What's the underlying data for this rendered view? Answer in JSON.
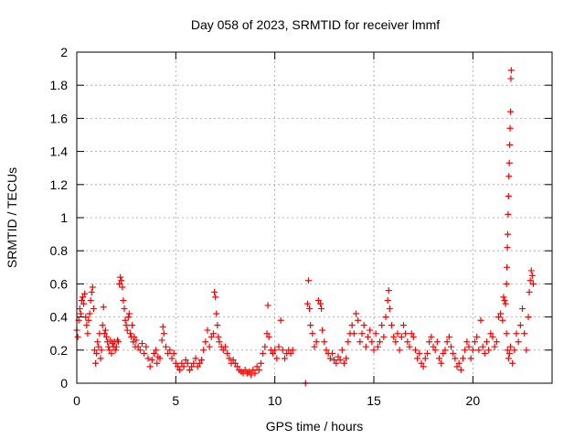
{
  "chart_data": {
    "type": "scatter",
    "title": "Day 058 of 2023, SRMTID for receiver lmmf",
    "xlabel": "GPS time / hours",
    "ylabel": "SRMTID / TECUs",
    "xlim": [
      0,
      24
    ],
    "ylim": [
      0,
      2
    ],
    "xticks": [
      "0",
      "5",
      "10",
      "15",
      "20"
    ],
    "yticks": [
      "0",
      "0.2",
      "0.4",
      "0.6",
      "0.8",
      "1",
      "1.2",
      "1.4",
      "1.6",
      "1.8",
      "2"
    ],
    "grid": true,
    "marker": "+",
    "color": "#ff0000",
    "series": [
      {
        "name": "SRMTID",
        "points": [
          [
            0.0,
            0.32
          ],
          [
            0.05,
            0.28
          ],
          [
            0.1,
            0.38
          ],
          [
            0.15,
            0.45
          ],
          [
            0.2,
            0.42
          ],
          [
            0.25,
            0.5
          ],
          [
            0.3,
            0.52
          ],
          [
            0.35,
            0.48
          ],
          [
            0.4,
            0.54
          ],
          [
            0.45,
            0.4
          ],
          [
            0.5,
            0.35
          ],
          [
            0.55,
            0.3
          ],
          [
            0.6,
            0.38
          ],
          [
            0.65,
            0.42
          ],
          [
            0.7,
            0.5
          ],
          [
            0.75,
            0.55
          ],
          [
            0.8,
            0.58
          ],
          [
            0.85,
            0.45
          ],
          [
            0.9,
            0.2
          ],
          [
            0.95,
            0.12
          ],
          [
            1.0,
            0.18
          ],
          [
            1.05,
            0.25
          ],
          [
            1.1,
            0.22
          ],
          [
            1.15,
            0.3
          ],
          [
            1.2,
            0.15
          ],
          [
            1.25,
            0.2
          ],
          [
            1.3,
            0.35
          ],
          [
            1.35,
            0.46
          ],
          [
            1.4,
            0.3
          ],
          [
            1.45,
            0.32
          ],
          [
            1.5,
            0.28
          ],
          [
            1.55,
            0.25
          ],
          [
            1.6,
            0.22
          ],
          [
            1.65,
            0.2
          ],
          [
            1.7,
            0.26
          ],
          [
            1.75,
            0.18
          ],
          [
            1.8,
            0.24
          ],
          [
            1.85,
            0.22
          ],
          [
            1.9,
            0.25
          ],
          [
            1.95,
            0.2
          ],
          [
            2.0,
            0.22
          ],
          [
            2.05,
            0.26
          ],
          [
            2.1,
            0.25
          ],
          [
            2.15,
            0.6
          ],
          [
            2.2,
            0.64
          ],
          [
            2.25,
            0.62
          ],
          [
            2.3,
            0.58
          ],
          [
            2.35,
            0.5
          ],
          [
            2.4,
            0.45
          ],
          [
            2.45,
            0.38
          ],
          [
            2.5,
            0.35
          ],
          [
            2.55,
            0.32
          ],
          [
            2.6,
            0.4
          ],
          [
            2.65,
            0.42
          ],
          [
            2.7,
            0.3
          ],
          [
            2.75,
            0.28
          ],
          [
            2.8,
            0.35
          ],
          [
            2.85,
            0.25
          ],
          [
            2.9,
            0.28
          ],
          [
            2.95,
            0.22
          ],
          [
            3.0,
            0.26
          ],
          [
            3.1,
            0.22
          ],
          [
            3.2,
            0.2
          ],
          [
            3.3,
            0.24
          ],
          [
            3.4,
            0.18
          ],
          [
            3.5,
            0.22
          ],
          [
            3.6,
            0.15
          ],
          [
            3.7,
            0.1
          ],
          [
            3.8,
            0.14
          ],
          [
            3.9,
            0.18
          ],
          [
            4.0,
            0.2
          ],
          [
            4.05,
            0.12
          ],
          [
            4.1,
            0.16
          ],
          [
            4.2,
            0.15
          ],
          [
            4.3,
            0.26
          ],
          [
            4.35,
            0.34
          ],
          [
            4.4,
            0.3
          ],
          [
            4.5,
            0.22
          ],
          [
            4.6,
            0.18
          ],
          [
            4.7,
            0.2
          ],
          [
            4.8,
            0.15
          ],
          [
            4.9,
            0.18
          ],
          [
            5.0,
            0.12
          ],
          [
            5.1,
            0.1
          ],
          [
            5.2,
            0.08
          ],
          [
            5.3,
            0.12
          ],
          [
            5.4,
            0.1
          ],
          [
            5.5,
            0.14
          ],
          [
            5.6,
            0.12
          ],
          [
            5.7,
            0.08
          ],
          [
            5.8,
            0.1
          ],
          [
            5.9,
            0.12
          ],
          [
            6.0,
            0.15
          ],
          [
            6.1,
            0.1
          ],
          [
            6.2,
            0.12
          ],
          [
            6.3,
            0.14
          ],
          [
            6.4,
            0.2
          ],
          [
            6.5,
            0.25
          ],
          [
            6.6,
            0.32
          ],
          [
            6.7,
            0.22
          ],
          [
            6.8,
            0.28
          ],
          [
            6.9,
            0.3
          ],
          [
            6.95,
            0.55
          ],
          [
            7.0,
            0.52
          ],
          [
            7.05,
            0.42
          ],
          [
            7.1,
            0.35
          ],
          [
            7.15,
            0.28
          ],
          [
            7.2,
            0.25
          ],
          [
            7.3,
            0.22
          ],
          [
            7.4,
            0.2
          ],
          [
            7.5,
            0.22
          ],
          [
            7.6,
            0.18
          ],
          [
            7.7,
            0.15
          ],
          [
            7.8,
            0.12
          ],
          [
            7.9,
            0.14
          ],
          [
            8.0,
            0.12
          ],
          [
            8.1,
            0.1
          ],
          [
            8.2,
            0.08
          ],
          [
            8.3,
            0.07
          ],
          [
            8.4,
            0.06
          ],
          [
            8.5,
            0.08
          ],
          [
            8.6,
            0.06
          ],
          [
            8.7,
            0.07
          ],
          [
            8.8,
            0.05
          ],
          [
            8.9,
            0.08
          ],
          [
            9.0,
            0.06
          ],
          [
            9.1,
            0.1
          ],
          [
            9.2,
            0.08
          ],
          [
            9.3,
            0.12
          ],
          [
            9.4,
            0.18
          ],
          [
            9.5,
            0.22
          ],
          [
            9.6,
            0.3
          ],
          [
            9.65,
            0.47
          ],
          [
            9.7,
            0.28
          ],
          [
            9.8,
            0.2
          ],
          [
            9.9,
            0.18
          ],
          [
            10.0,
            0.2
          ],
          [
            10.1,
            0.15
          ],
          [
            10.2,
            0.22
          ],
          [
            10.3,
            0.38
          ],
          [
            10.4,
            0.2
          ],
          [
            10.5,
            0.15
          ],
          [
            10.6,
            0.18
          ],
          [
            10.7,
            0.2
          ],
          [
            10.8,
            0.18
          ],
          [
            10.9,
            0.2
          ],
          [
            11.55,
            0.0
          ],
          [
            11.65,
            0.48
          ],
          [
            11.7,
            0.62
          ],
          [
            11.75,
            0.45
          ],
          [
            11.8,
            0.35
          ],
          [
            11.9,
            0.3
          ],
          [
            12.0,
            0.22
          ],
          [
            12.1,
            0.25
          ],
          [
            12.2,
            0.5
          ],
          [
            12.3,
            0.48
          ],
          [
            12.35,
            0.45
          ],
          [
            12.4,
            0.32
          ],
          [
            12.5,
            0.25
          ],
          [
            12.6,
            0.2
          ],
          [
            12.7,
            0.18
          ],
          [
            12.8,
            0.15
          ],
          [
            12.9,
            0.18
          ],
          [
            13.0,
            0.14
          ],
          [
            13.1,
            0.12
          ],
          [
            13.2,
            0.16
          ],
          [
            13.3,
            0.14
          ],
          [
            13.4,
            0.2
          ],
          [
            13.5,
            0.12
          ],
          [
            13.6,
            0.15
          ],
          [
            13.7,
            0.25
          ],
          [
            13.8,
            0.3
          ],
          [
            13.9,
            0.35
          ],
          [
            14.0,
            0.3
          ],
          [
            14.1,
            0.42
          ],
          [
            14.2,
            0.38
          ],
          [
            14.3,
            0.25
          ],
          [
            14.4,
            0.3
          ],
          [
            14.5,
            0.35
          ],
          [
            14.6,
            0.22
          ],
          [
            14.7,
            0.28
          ],
          [
            14.8,
            0.32
          ],
          [
            14.9,
            0.25
          ],
          [
            15.0,
            0.2
          ],
          [
            15.1,
            0.3
          ],
          [
            15.2,
            0.22
          ],
          [
            15.3,
            0.25
          ],
          [
            15.4,
            0.35
          ],
          [
            15.5,
            0.28
          ],
          [
            15.6,
            0.4
          ],
          [
            15.7,
            0.5
          ],
          [
            15.75,
            0.56
          ],
          [
            15.8,
            0.45
          ],
          [
            15.9,
            0.35
          ],
          [
            16.0,
            0.28
          ],
          [
            16.1,
            0.25
          ],
          [
            16.2,
            0.3
          ],
          [
            16.3,
            0.2
          ],
          [
            16.4,
            0.28
          ],
          [
            16.5,
            0.35
          ],
          [
            16.6,
            0.3
          ],
          [
            16.7,
            0.25
          ],
          [
            16.8,
            0.22
          ],
          [
            16.9,
            0.3
          ],
          [
            17.0,
            0.28
          ],
          [
            17.1,
            0.2
          ],
          [
            17.2,
            0.15
          ],
          [
            17.3,
            0.18
          ],
          [
            17.4,
            0.12
          ],
          [
            17.5,
            0.1
          ],
          [
            17.6,
            0.15
          ],
          [
            17.7,
            0.18
          ],
          [
            17.8,
            0.25
          ],
          [
            17.9,
            0.28
          ],
          [
            18.0,
            0.22
          ],
          [
            18.1,
            0.2
          ],
          [
            18.2,
            0.25
          ],
          [
            18.3,
            0.15
          ],
          [
            18.4,
            0.12
          ],
          [
            18.5,
            0.18
          ],
          [
            18.6,
            0.2
          ],
          [
            18.7,
            0.25
          ],
          [
            18.8,
            0.28
          ],
          [
            18.9,
            0.22
          ],
          [
            19.0,
            0.18
          ],
          [
            19.1,
            0.15
          ],
          [
            19.2,
            0.1
          ],
          [
            19.3,
            0.12
          ],
          [
            19.4,
            0.08
          ],
          [
            19.5,
            0.15
          ],
          [
            19.6,
            0.2
          ],
          [
            19.7,
            0.25
          ],
          [
            19.8,
            0.22
          ],
          [
            19.9,
            0.15
          ],
          [
            20.0,
            0.2
          ],
          [
            20.1,
            0.25
          ],
          [
            20.2,
            0.28
          ],
          [
            20.3,
            0.2
          ],
          [
            20.4,
            0.38
          ],
          [
            20.5,
            0.22
          ],
          [
            20.6,
            0.18
          ],
          [
            20.7,
            0.25
          ],
          [
            20.8,
            0.2
          ],
          [
            20.9,
            0.3
          ],
          [
            21.0,
            0.28
          ],
          [
            21.1,
            0.22
          ],
          [
            21.2,
            0.25
          ],
          [
            21.3,
            0.4
          ],
          [
            21.4,
            0.42
          ],
          [
            21.5,
            0.38
          ],
          [
            21.55,
            0.52
          ],
          [
            21.6,
            0.5
          ],
          [
            21.65,
            0.48
          ],
          [
            21.7,
            0.3
          ],
          [
            21.75,
            0.2
          ],
          [
            21.8,
            0.15
          ],
          [
            21.85,
            0.18
          ],
          [
            21.9,
            0.22
          ],
          [
            22.0,
            0.12
          ],
          [
            22.1,
            0.2
          ],
          [
            22.2,
            0.3
          ],
          [
            22.3,
            0.25
          ],
          [
            22.4,
            0.35
          ],
          [
            22.5,
            0.45
          ],
          [
            22.6,
            0.3
          ],
          [
            22.7,
            0.2
          ],
          [
            22.8,
            0.4
          ],
          [
            22.85,
            0.55
          ],
          [
            22.9,
            0.62
          ],
          [
            22.95,
            0.68
          ],
          [
            23.0,
            0.65
          ],
          [
            23.05,
            0.6
          ],
          [
            21.7,
            0.6
          ],
          [
            21.72,
            0.7
          ],
          [
            21.74,
            0.82
          ],
          [
            21.76,
            0.9
          ],
          [
            21.78,
            1.02
          ],
          [
            21.8,
            1.13
          ],
          [
            21.82,
            1.25
          ],
          [
            21.84,
            1.33
          ],
          [
            21.86,
            1.44
          ],
          [
            21.88,
            1.54
          ],
          [
            21.9,
            1.64
          ],
          [
            21.92,
            1.84
          ],
          [
            21.94,
            1.89
          ]
        ]
      }
    ]
  }
}
